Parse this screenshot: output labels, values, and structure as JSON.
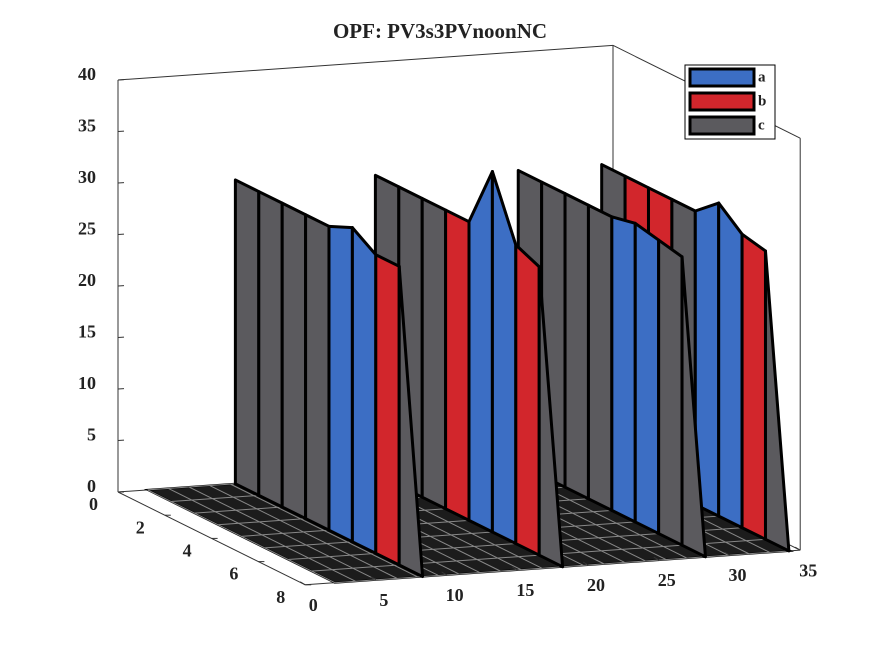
{
  "chart_data": {
    "type": "surface3d",
    "title": "OPF: PV3s3PVnoonNC",
    "series": [
      {
        "name": "a",
        "color": "#3c6ec4"
      },
      {
        "name": "b",
        "color": "#d2262c"
      },
      {
        "name": "c",
        "color": "#5b5a5e"
      }
    ],
    "y": [
      0,
      1,
      2,
      3,
      4,
      5,
      6,
      7,
      8
    ],
    "walls": [
      {
        "x": 8.3,
        "z": [
          29.5,
          29.5,
          29.5,
          29.5,
          29.5,
          30.5,
          29,
          29,
          0
        ],
        "phase": [
          2,
          2,
          2,
          2,
          0,
          0,
          1,
          2
        ]
      },
      {
        "x": 18.2,
        "z": [
          29,
          29,
          29,
          29,
          29,
          35,
          29,
          28,
          0
        ],
        "phase": [
          2,
          2,
          2,
          1,
          0,
          0,
          1,
          2
        ]
      },
      {
        "x": 28.3,
        "z": [
          28.5,
          28.5,
          28.5,
          28.5,
          28.5,
          29,
          28.5,
          28,
          0
        ],
        "phase": [
          2,
          2,
          2,
          2,
          0,
          0,
          2,
          2
        ]
      },
      {
        "x": 34.2,
        "z": [
          28.5,
          28.5,
          28.5,
          28.5,
          28.5,
          30.4,
          28.5,
          28,
          0
        ],
        "phase": [
          2,
          1,
          1,
          2,
          0,
          0,
          1,
          2
        ]
      }
    ],
    "xlim": [
      0,
      35
    ],
    "xticks": [
      0,
      5,
      10,
      15,
      20,
      25,
      30,
      35
    ],
    "ylim": [
      0,
      8
    ],
    "yticks": [
      0,
      2,
      4,
      6,
      8
    ],
    "zlim": [
      0,
      40
    ],
    "zticks": [
      0,
      5,
      10,
      15,
      20,
      25,
      30,
      35,
      40
    ],
    "legend": "upper right"
  }
}
